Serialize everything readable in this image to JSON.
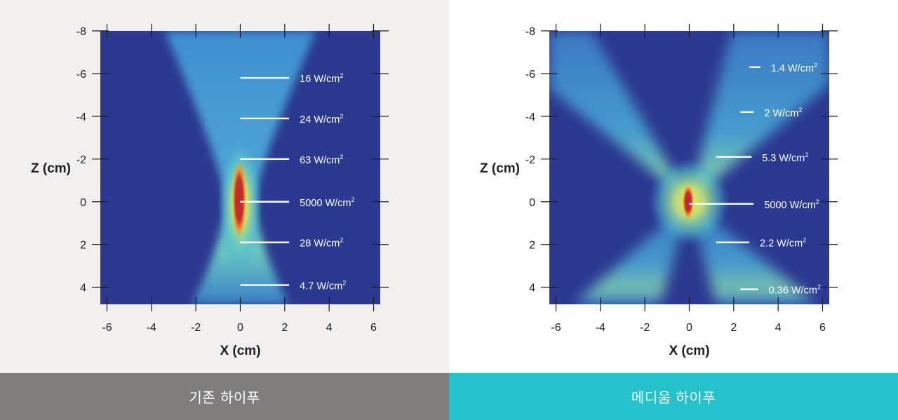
{
  "colors": {
    "background_field": "#2b3990",
    "left_panel_bg": "#f1f0ef",
    "right_panel_bg": "#ffffff",
    "left_caption_bg": "#7f7e7c",
    "right_caption_bg": "#25c2cc",
    "focus_hot": "#c1272d",
    "focus_warm": "#f7941d",
    "beam_light": "#00aeef"
  },
  "panels": [
    {
      "caption": "기존 하이푸"
    },
    {
      "caption": "메디움 하이푸"
    }
  ],
  "chart_data": [
    {
      "type": "heatmap",
      "title": "",
      "xlabel": "X (cm)",
      "ylabel": "Z (cm)",
      "xlim": [
        -6.3,
        6.3
      ],
      "ylim": [
        -8,
        4.8
      ],
      "y_inverted": true,
      "xticks": [
        -6,
        -4,
        -2,
        0,
        2,
        4,
        6
      ],
      "yticks": [
        -8,
        -6,
        -4,
        -2,
        0,
        2,
        4
      ],
      "annotations": [
        {
          "z": -5.8,
          "x1": 0,
          "x2": 2.2,
          "label": "16 W/cm",
          "sup": "2"
        },
        {
          "z": -3.9,
          "x1": 0,
          "x2": 2.2,
          "label": "24 W/cm",
          "sup": "2"
        },
        {
          "z": -2.0,
          "x1": 0,
          "x2": 2.2,
          "label": "63 W/cm",
          "sup": "2"
        },
        {
          "z": 0.0,
          "x1": 0,
          "x2": 2.2,
          "label": "5000 W/cm",
          "sup": "2"
        },
        {
          "z": 1.9,
          "x1": 0,
          "x2": 2.2,
          "label": "28 W/cm",
          "sup": "2"
        },
        {
          "z": 3.9,
          "x1": 0,
          "x2": 2.2,
          "label": "4.7 W/cm",
          "sup": "2"
        }
      ]
    },
    {
      "type": "heatmap",
      "title": "",
      "xlabel": "X (cm)",
      "ylabel": "Z (cm)",
      "xlim": [
        -6.3,
        6.3
      ],
      "ylim": [
        -8,
        4.8
      ],
      "y_inverted": true,
      "xticks": [
        -6,
        -4,
        -2,
        0,
        2,
        4,
        6
      ],
      "yticks": [
        -8,
        -6,
        -4,
        -2,
        0,
        2,
        4
      ],
      "annotations": [
        {
          "z": -6.3,
          "x1": 2.7,
          "x2": 3.2,
          "label": "1.4 W/cm",
          "sup": "2"
        },
        {
          "z": -4.2,
          "x1": 2.3,
          "x2": 2.9,
          "label": "2 W/cm",
          "sup": "2"
        },
        {
          "z": -2.1,
          "x1": 1.2,
          "x2": 2.8,
          "label": "5.3 W/cm",
          "sup": "2"
        },
        {
          "z": 0.1,
          "x1": 0,
          "x2": 2.9,
          "label": "5000 W/cm",
          "sup": "2"
        },
        {
          "z": 1.9,
          "x1": 1.2,
          "x2": 2.7,
          "label": "2.2 W/cm",
          "sup": "2"
        },
        {
          "z": 4.1,
          "x1": 2.3,
          "x2": 3.1,
          "label": "0.36 W/cm",
          "sup": "2"
        }
      ]
    }
  ]
}
